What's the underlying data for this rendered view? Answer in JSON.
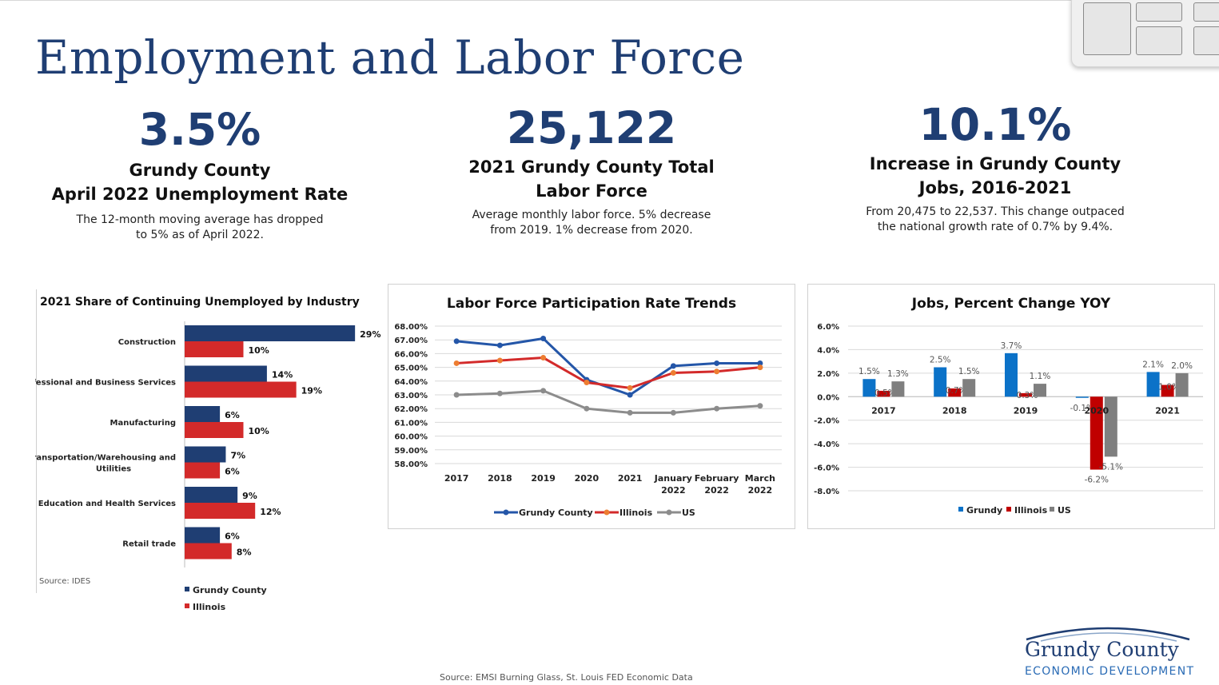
{
  "title": "Employment and Labor Force",
  "kpis": [
    {
      "value": "3.5%",
      "head1": "Grundy County",
      "head2": "April 2022 Unemployment Rate",
      "desc1": "The 12-month moving average has dropped",
      "desc2": "to 5% as of April 2022."
    },
    {
      "value": "25,122",
      "head1": "2021 Grundy County Total",
      "head2": "Labor Force",
      "desc1": "Average monthly labor force. 5% decrease",
      "desc2": "from 2019. 1% decrease from 2020."
    },
    {
      "value": "10.1%",
      "head1": "Increase in Grundy County",
      "head2": "Jobs, 2016-2021",
      "desc1": "From 20,475 to 22,537. This change outpaced",
      "desc2": "the national growth rate of 0.7% by 9.4%."
    }
  ],
  "sources": {
    "left": "Source: IDES",
    "bottom": "Source: EMSI Burning Glass, St. Louis FED Economic Data"
  },
  "logo": {
    "line1": "Grundy County",
    "line2": "ECONOMIC DEVELOPMENT"
  },
  "colors": {
    "navy": "#1f3e73",
    "red": "#d32a2a",
    "blue": "#2456a8",
    "orange": "#ed7d31",
    "gray": "#8c8c8c",
    "yoy_blue": "#0b72c8",
    "yoy_red": "#c00000",
    "yoy_gray": "#7f7f7f"
  },
  "chart_data": [
    {
      "type": "bar",
      "orientation": "horizontal",
      "title": "2021 Share of Continuing Unemployed by Industry",
      "categories": [
        "Construction",
        "Professional and Business Services",
        "Manufacturing",
        "Transportation/Warehousing and Utilities",
        "Education and Health Services",
        "Retail trade"
      ],
      "category_lines": [
        [
          "Construction"
        ],
        [
          "Professional and Business Services"
        ],
        [
          "Manufacturing"
        ],
        [
          "Transportation/Warehousing and",
          "Utilities"
        ],
        [
          "Education and Health Services"
        ],
        [
          "Retail trade"
        ]
      ],
      "series": [
        {
          "name": "Grundy County",
          "values": [
            29,
            14,
            6,
            7,
            9,
            6
          ],
          "labels": [
            "29%",
            "14%",
            "6%",
            "7%",
            "9%",
            "6%"
          ]
        },
        {
          "name": "Illinois",
          "values": [
            10,
            19,
            10,
            6,
            12,
            8
          ],
          "labels": [
            "10%",
            "19%",
            "10%",
            "6%",
            "12%",
            "8%"
          ]
        }
      ],
      "xlim": [
        0,
        30
      ],
      "legend": "bottom"
    },
    {
      "type": "line",
      "title": "Labor Force Participation  Rate Trends",
      "x": [
        "2017",
        "2018",
        "2019",
        "2020",
        "2021",
        "January 2022",
        "February 2022",
        "March 2022"
      ],
      "x_lines": [
        [
          "2017"
        ],
        [
          "2018"
        ],
        [
          "2019"
        ],
        [
          "2020"
        ],
        [
          "2021"
        ],
        [
          "January",
          "2022"
        ],
        [
          "February",
          "2022"
        ],
        [
          "March",
          "2022"
        ]
      ],
      "series": [
        {
          "name": "Grundy County",
          "values": [
            66.9,
            66.6,
            67.1,
            64.1,
            63.0,
            65.1,
            65.3,
            65.3
          ]
        },
        {
          "name": "Illinois",
          "values": [
            65.3,
            65.5,
            65.7,
            63.9,
            63.5,
            64.6,
            64.7,
            65.0
          ]
        },
        {
          "name": "US",
          "values": [
            63.0,
            63.1,
            63.3,
            62.0,
            61.7,
            61.7,
            62.0,
            62.2
          ]
        }
      ],
      "yticks": [
        "68.00%",
        "67.00%",
        "66.00%",
        "65.00%",
        "64.00%",
        "63.00%",
        "62.00%",
        "61.00%",
        "60.00%",
        "59.00%",
        "58.00%"
      ],
      "ylim": [
        58,
        68
      ],
      "grid": true,
      "legend": "bottom"
    },
    {
      "type": "bar",
      "title": "Jobs, Percent Change YOY",
      "categories": [
        "2017",
        "2018",
        "2019",
        "2020",
        "2021"
      ],
      "series": [
        {
          "name": "Grundy",
          "values": [
            1.5,
            2.5,
            3.7,
            -0.1,
            2.1
          ],
          "labels": [
            "1.5%",
            "2.5%",
            "3.7%",
            "-0.1%",
            "2.1%"
          ]
        },
        {
          "name": "Illinois",
          "values": [
            0.5,
            0.7,
            0.3,
            -6.2,
            1.0
          ],
          "labels": [
            "0.5%",
            "0.7%",
            "0.3%",
            "-6.2%",
            "1.0%"
          ]
        },
        {
          "name": "US",
          "values": [
            1.3,
            1.5,
            1.1,
            -5.1,
            2.0
          ],
          "labels": [
            "1.3%",
            "1.5%",
            "1.1%",
            "-5.1%",
            "2.0%"
          ]
        }
      ],
      "yticks": [
        "6.0%",
        "4.0%",
        "2.0%",
        "0.0%",
        "-2.0%",
        "-4.0%",
        "-6.0%",
        "-8.0%"
      ],
      "ylim": [
        -8,
        6
      ],
      "grid": true,
      "legend": "bottom"
    }
  ]
}
